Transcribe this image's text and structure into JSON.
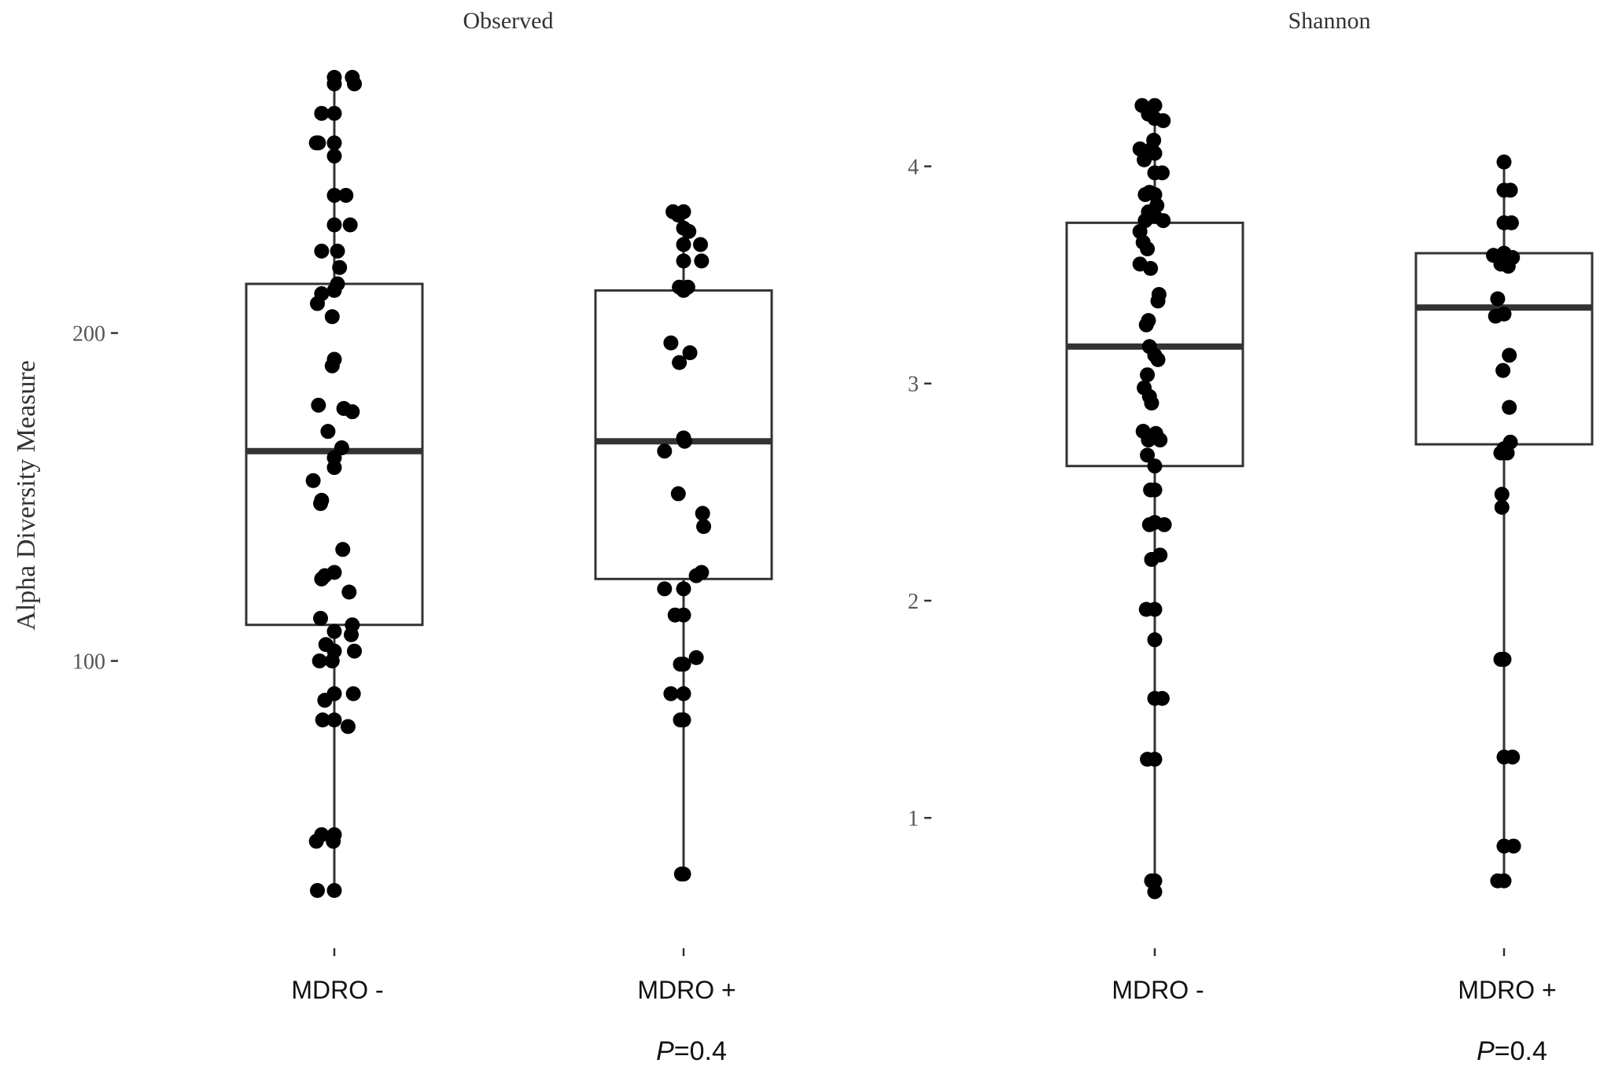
{
  "y_axis_title": "Alpha Diversity Measure",
  "chart_data": [
    {
      "type": "box",
      "title": "Observed",
      "xlabel": "",
      "ylabel": "Alpha Diversity Measure",
      "categories": [
        "MDRO -",
        "MDRO +"
      ],
      "yticks": [
        100,
        200
      ],
      "ylim": [
        21,
        280
      ],
      "grid": false,
      "pvalue": {
        "label": "P",
        "text": "=0.4"
      },
      "boxes": [
        {
          "q1": 111,
          "median": 164,
          "q3": 215,
          "whisker_low": 30,
          "whisker_high": 278
        },
        {
          "q1": 125,
          "median": 167,
          "q3": 213,
          "whisker_low": 35,
          "whisker_high": 237
        }
      ],
      "points": [
        [
          {
            "dx": 0.0,
            "y": 278
          },
          {
            "dx": 0.0,
            "y": 276
          },
          {
            "dx": 0.17,
            "y": 278
          },
          {
            "dx": 0.19,
            "y": 276
          },
          {
            "dx": 0.0,
            "y": 267
          },
          {
            "dx": -0.12,
            "y": 267
          },
          {
            "dx": -0.17,
            "y": 258
          },
          {
            "dx": -0.15,
            "y": 258
          },
          {
            "dx": 0.0,
            "y": 258
          },
          {
            "dx": 0.0,
            "y": 254
          },
          {
            "dx": 0.0,
            "y": 242
          },
          {
            "dx": 0.11,
            "y": 242
          },
          {
            "dx": 0.0,
            "y": 233
          },
          {
            "dx": 0.15,
            "y": 233
          },
          {
            "dx": -0.12,
            "y": 225
          },
          {
            "dx": 0.03,
            "y": 225
          },
          {
            "dx": 0.05,
            "y": 220
          },
          {
            "dx": -0.12,
            "y": 212
          },
          {
            "dx": 0.0,
            "y": 213
          },
          {
            "dx": 0.03,
            "y": 215
          },
          {
            "dx": -0.16,
            "y": 209
          },
          {
            "dx": -0.02,
            "y": 205
          },
          {
            "dx": 0.0,
            "y": 192
          },
          {
            "dx": -0.02,
            "y": 190
          },
          {
            "dx": -0.15,
            "y": 178
          },
          {
            "dx": 0.09,
            "y": 177
          },
          {
            "dx": 0.17,
            "y": 176
          },
          {
            "dx": -0.06,
            "y": 170
          },
          {
            "dx": 0.07,
            "y": 165
          },
          {
            "dx": 0.0,
            "y": 162
          },
          {
            "dx": 0.0,
            "y": 159
          },
          {
            "dx": -0.2,
            "y": 155
          },
          {
            "dx": -0.12,
            "y": 149
          },
          {
            "dx": -0.13,
            "y": 148
          },
          {
            "dx": 0.08,
            "y": 134
          },
          {
            "dx": 0.0,
            "y": 127
          },
          {
            "dx": -0.09,
            "y": 126
          },
          {
            "dx": -0.12,
            "y": 125
          },
          {
            "dx": 0.14,
            "y": 121
          },
          {
            "dx": -0.13,
            "y": 113
          },
          {
            "dx": 0.0,
            "y": 109
          },
          {
            "dx": 0.17,
            "y": 111
          },
          {
            "dx": 0.16,
            "y": 108
          },
          {
            "dx": -0.08,
            "y": 105
          },
          {
            "dx": 0.0,
            "y": 103
          },
          {
            "dx": 0.19,
            "y": 103
          },
          {
            "dx": -0.14,
            "y": 100
          },
          {
            "dx": -0.02,
            "y": 100
          },
          {
            "dx": 0.0,
            "y": 90
          },
          {
            "dx": 0.18,
            "y": 90
          },
          {
            "dx": -0.09,
            "y": 88
          },
          {
            "dx": -0.11,
            "y": 82
          },
          {
            "dx": 0.0,
            "y": 82
          },
          {
            "dx": 0.13,
            "y": 80
          },
          {
            "dx": -0.12,
            "y": 47
          },
          {
            "dx": 0.0,
            "y": 47
          },
          {
            "dx": -0.17,
            "y": 45
          },
          {
            "dx": -0.01,
            "y": 45
          },
          {
            "dx": -0.16,
            "y": 30
          },
          {
            "dx": 0.0,
            "y": 30
          }
        ],
        [
          {
            "dx": -0.1,
            "y": 237
          },
          {
            "dx": -0.05,
            "y": 236
          },
          {
            "dx": 0.0,
            "y": 237
          },
          {
            "dx": 0.0,
            "y": 232
          },
          {
            "dx": 0.05,
            "y": 231
          },
          {
            "dx": 0.16,
            "y": 227
          },
          {
            "dx": 0.0,
            "y": 227
          },
          {
            "dx": 0.17,
            "y": 222
          },
          {
            "dx": 0.0,
            "y": 222
          },
          {
            "dx": -0.04,
            "y": 214
          },
          {
            "dx": 0.04,
            "y": 214
          },
          {
            "dx": 0.0,
            "y": 213
          },
          {
            "dx": -0.12,
            "y": 197
          },
          {
            "dx": 0.06,
            "y": 194
          },
          {
            "dx": -0.04,
            "y": 191
          },
          {
            "dx": 0.0,
            "y": 168
          },
          {
            "dx": 0.01,
            "y": 167
          },
          {
            "dx": -0.18,
            "y": 164
          },
          {
            "dx": -0.05,
            "y": 151
          },
          {
            "dx": 0.18,
            "y": 145
          },
          {
            "dx": 0.19,
            "y": 141
          },
          {
            "dx": 0.17,
            "y": 127
          },
          {
            "dx": 0.12,
            "y": 126
          },
          {
            "dx": -0.18,
            "y": 122
          },
          {
            "dx": 0.0,
            "y": 122
          },
          {
            "dx": -0.08,
            "y": 114
          },
          {
            "dx": 0.0,
            "y": 114
          },
          {
            "dx": 0.12,
            "y": 101
          },
          {
            "dx": -0.03,
            "y": 99
          },
          {
            "dx": 0.0,
            "y": 99
          },
          {
            "dx": -0.12,
            "y": 90
          },
          {
            "dx": 0.0,
            "y": 90
          },
          {
            "dx": -0.03,
            "y": 82
          },
          {
            "dx": 0.0,
            "y": 82
          },
          {
            "dx": -0.02,
            "y": 35
          },
          {
            "dx": 0.0,
            "y": 35
          }
        ]
      ]
    },
    {
      "type": "box",
      "title": "Shannon",
      "xlabel": "",
      "ylabel": "",
      "categories": [
        "MDRO -",
        "MDRO +"
      ],
      "yticks": [
        1,
        2,
        3,
        4
      ],
      "ylim": [
        0.53,
        4.44
      ],
      "grid": false,
      "pvalue": {
        "label": "P",
        "text": "=0.4"
      },
      "boxes": [
        {
          "q1": 2.62,
          "median": 3.17,
          "q3": 3.74,
          "whisker_low": 0.69,
          "whisker_high": 4.29
        },
        {
          "q1": 2.72,
          "median": 3.35,
          "q3": 3.6,
          "whisker_low": 0.69,
          "whisker_high": 4.02
        }
      ],
      "points": [
        [
          {
            "dx": -0.12,
            "y": 4.28
          },
          {
            "dx": -0.06,
            "y": 4.24
          },
          {
            "dx": 0.0,
            "y": 4.28
          },
          {
            "dx": 0.0,
            "y": 4.22
          },
          {
            "dx": 0.08,
            "y": 4.21
          },
          {
            "dx": -0.01,
            "y": 4.12
          },
          {
            "dx": -0.03,
            "y": 4.08
          },
          {
            "dx": -0.14,
            "y": 4.08
          },
          {
            "dx": 0.0,
            "y": 4.06
          },
          {
            "dx": -0.1,
            "y": 4.03
          },
          {
            "dx": 0.0,
            "y": 3.97
          },
          {
            "dx": 0.07,
            "y": 3.97
          },
          {
            "dx": -0.09,
            "y": 3.87
          },
          {
            "dx": -0.05,
            "y": 3.88
          },
          {
            "dx": 0.0,
            "y": 3.87
          },
          {
            "dx": 0.02,
            "y": 3.82
          },
          {
            "dx": -0.06,
            "y": 3.79
          },
          {
            "dx": -0.09,
            "y": 3.75
          },
          {
            "dx": 0.0,
            "y": 3.77
          },
          {
            "dx": 0.08,
            "y": 3.75
          },
          {
            "dx": -0.14,
            "y": 3.7
          },
          {
            "dx": -0.11,
            "y": 3.65
          },
          {
            "dx": -0.07,
            "y": 3.62
          },
          {
            "dx": -0.14,
            "y": 3.55
          },
          {
            "dx": -0.04,
            "y": 3.53
          },
          {
            "dx": 0.04,
            "y": 3.41
          },
          {
            "dx": 0.03,
            "y": 3.38
          },
          {
            "dx": -0.06,
            "y": 3.29
          },
          {
            "dx": -0.08,
            "y": 3.27
          },
          {
            "dx": -0.05,
            "y": 3.17
          },
          {
            "dx": 0.0,
            "y": 3.13
          },
          {
            "dx": 0.03,
            "y": 3.11
          },
          {
            "dx": -0.07,
            "y": 3.04
          },
          {
            "dx": -0.1,
            "y": 2.98
          },
          {
            "dx": -0.05,
            "y": 2.94
          },
          {
            "dx": -0.03,
            "y": 2.91
          },
          {
            "dx": 0.01,
            "y": 2.77
          },
          {
            "dx": 0.05,
            "y": 2.74
          },
          {
            "dx": -0.06,
            "y": 2.74
          },
          {
            "dx": -0.11,
            "y": 2.78
          },
          {
            "dx": -0.07,
            "y": 2.67
          },
          {
            "dx": 0.0,
            "y": 2.62
          },
          {
            "dx": 0.0,
            "y": 2.51
          },
          {
            "dx": -0.04,
            "y": 2.51
          },
          {
            "dx": -0.05,
            "y": 2.35
          },
          {
            "dx": 0.0,
            "y": 2.36
          },
          {
            "dx": 0.09,
            "y": 2.35
          },
          {
            "dx": 0.05,
            "y": 2.21
          },
          {
            "dx": -0.03,
            "y": 2.19
          },
          {
            "dx": -0.08,
            "y": 1.96
          },
          {
            "dx": 0.0,
            "y": 1.96
          },
          {
            "dx": 0.0,
            "y": 1.82
          },
          {
            "dx": 0.0,
            "y": 1.55
          },
          {
            "dx": 0.07,
            "y": 1.55
          },
          {
            "dx": -0.07,
            "y": 1.27
          },
          {
            "dx": 0.0,
            "y": 1.27
          },
          {
            "dx": -0.03,
            "y": 0.71
          },
          {
            "dx": 0.0,
            "y": 0.71
          },
          {
            "dx": 0.0,
            "y": 0.66
          }
        ],
        [
          {
            "dx": 0.0,
            "y": 4.02
          },
          {
            "dx": 0.0,
            "y": 3.89
          },
          {
            "dx": 0.06,
            "y": 3.89
          },
          {
            "dx": 0.0,
            "y": 3.74
          },
          {
            "dx": 0.07,
            "y": 3.74
          },
          {
            "dx": -0.1,
            "y": 3.59
          },
          {
            "dx": 0.0,
            "y": 3.6
          },
          {
            "dx": 0.08,
            "y": 3.58
          },
          {
            "dx": -0.03,
            "y": 3.55
          },
          {
            "dx": 0.04,
            "y": 3.54
          },
          {
            "dx": -0.06,
            "y": 3.39
          },
          {
            "dx": -0.08,
            "y": 3.31
          },
          {
            "dx": 0.0,
            "y": 3.32
          },
          {
            "dx": 0.05,
            "y": 3.13
          },
          {
            "dx": -0.01,
            "y": 3.06
          },
          {
            "dx": 0.05,
            "y": 2.89
          },
          {
            "dx": 0.06,
            "y": 2.73
          },
          {
            "dx": 0.0,
            "y": 2.7
          },
          {
            "dx": 0.03,
            "y": 2.68
          },
          {
            "dx": -0.03,
            "y": 2.68
          },
          {
            "dx": -0.02,
            "y": 2.49
          },
          {
            "dx": -0.02,
            "y": 2.43
          },
          {
            "dx": -0.03,
            "y": 1.73
          },
          {
            "dx": 0.0,
            "y": 1.73
          },
          {
            "dx": 0.0,
            "y": 1.28
          },
          {
            "dx": 0.08,
            "y": 1.28
          },
          {
            "dx": 0.0,
            "y": 0.87
          },
          {
            "dx": 0.09,
            "y": 0.87
          },
          {
            "dx": -0.06,
            "y": 0.71
          },
          {
            "dx": 0.0,
            "y": 0.71
          }
        ]
      ]
    }
  ]
}
